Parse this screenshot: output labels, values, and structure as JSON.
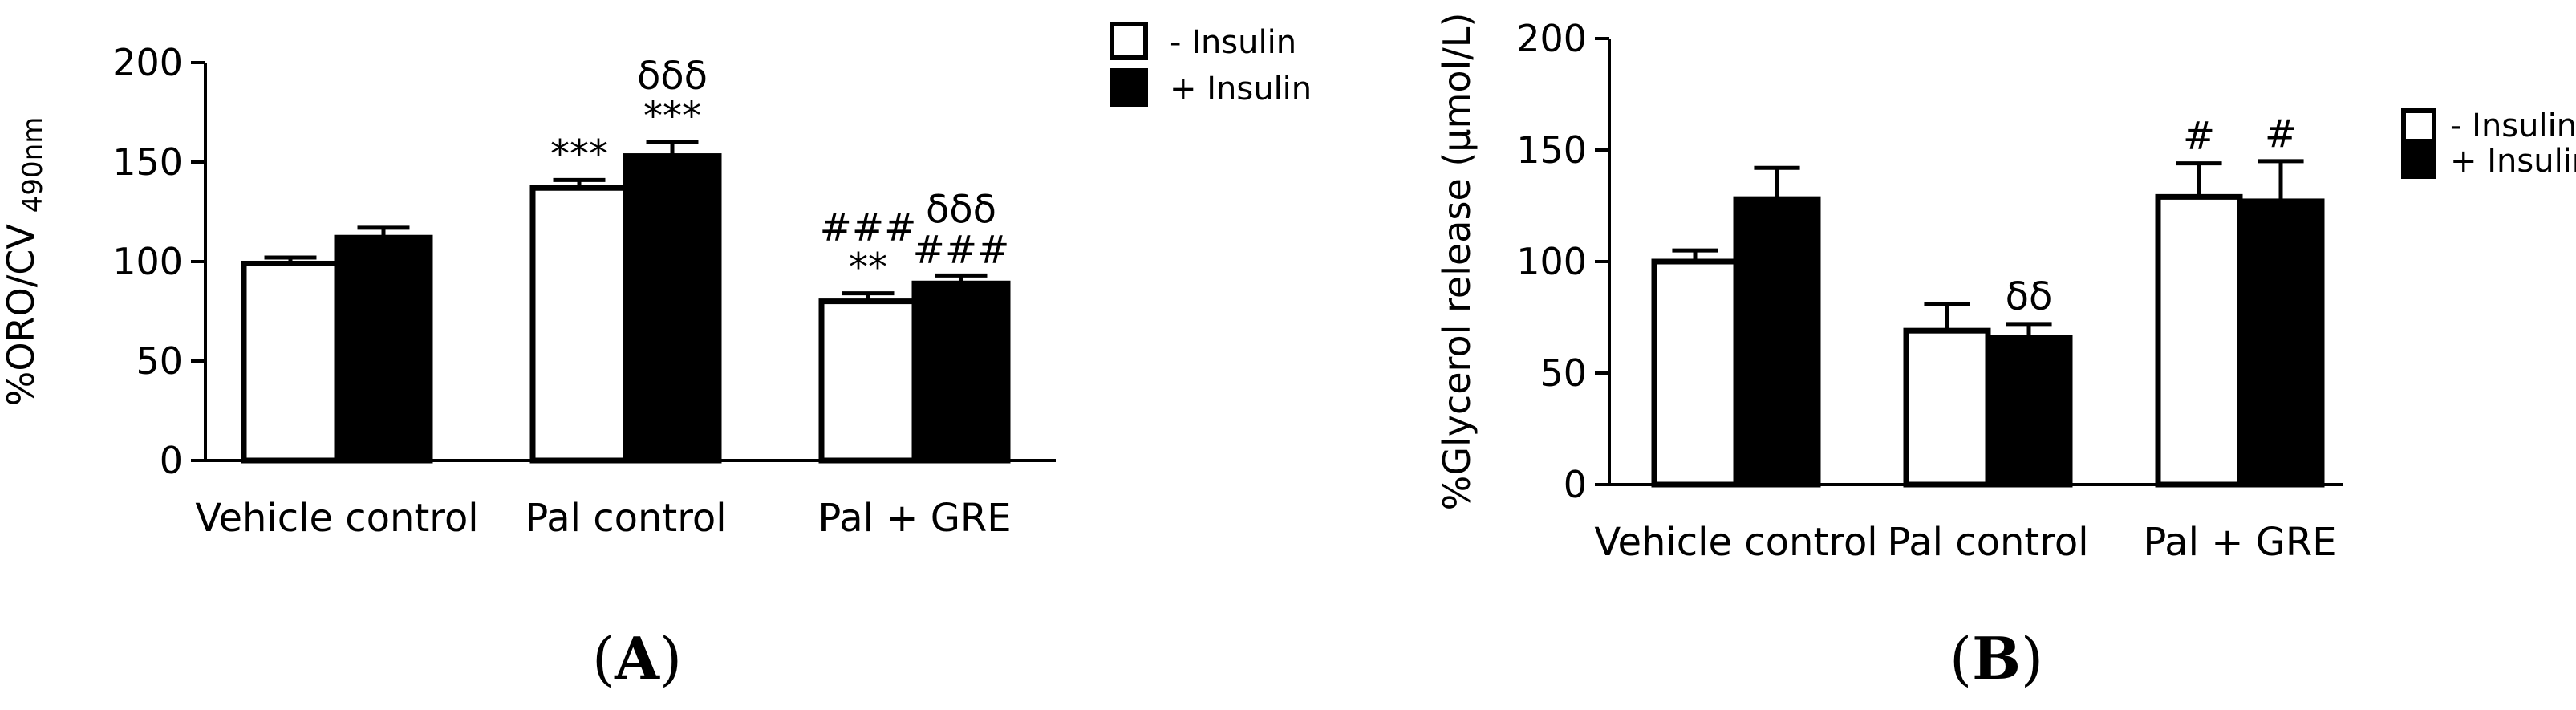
{
  "chart_data": [
    {
      "panel": "A",
      "type": "bar",
      "title": "",
      "ylabel": "%ORO/CV",
      "ylabel_sub": "490nm",
      "xlabel": "",
      "ylim": [
        0,
        200
      ],
      "yticks": [
        0,
        50,
        100,
        150,
        200
      ],
      "categories": [
        "Vehicle control",
        "Pal control",
        "Pal + GRE"
      ],
      "series": [
        {
          "name": "- Insulin",
          "fill": "#ffffff",
          "values": [
            99,
            137,
            80
          ],
          "errors": [
            3,
            4,
            4
          ]
        },
        {
          "name": "+ Insulin",
          "fill": "#000000",
          "values": [
            112,
            153,
            89
          ],
          "errors": [
            5,
            7,
            4
          ]
        }
      ],
      "annotations": [
        {
          "category": 1,
          "series": 0,
          "lines": [
            "***"
          ]
        },
        {
          "category": 1,
          "series": 1,
          "lines": [
            "δδδ",
            "***"
          ]
        },
        {
          "category": 2,
          "series": 0,
          "lines": [
            "###",
            "**"
          ]
        },
        {
          "category": 2,
          "series": 1,
          "lines": [
            "δδδ",
            "###"
          ]
        }
      ],
      "legend_position": "top-right",
      "grid": false
    },
    {
      "panel": "B",
      "type": "bar",
      "title": "",
      "ylabel": "%Glycerol release (µmol/L)",
      "xlabel": "",
      "ylim": [
        0,
        200
      ],
      "yticks": [
        0,
        50,
        100,
        150,
        200
      ],
      "categories": [
        "Vehicle control",
        "Pal control",
        "Pal + GRE"
      ],
      "series": [
        {
          "name": "- Insulin",
          "fill": "#ffffff",
          "values": [
            100,
            69,
            129
          ],
          "errors": [
            5,
            12,
            15
          ]
        },
        {
          "name": "+ Insulin",
          "fill": "#000000",
          "values": [
            128,
            66,
            127
          ],
          "errors": [
            14,
            6,
            18
          ]
        }
      ],
      "annotations": [
        {
          "category": 1,
          "series": 1,
          "lines": [
            "δδ"
          ]
        },
        {
          "category": 2,
          "series": 0,
          "lines": [
            "#"
          ]
        },
        {
          "category": 2,
          "series": 1,
          "lines": [
            "#"
          ]
        }
      ],
      "legend_position": "right",
      "grid": false
    }
  ],
  "panel_labels": [
    "A",
    "B"
  ]
}
